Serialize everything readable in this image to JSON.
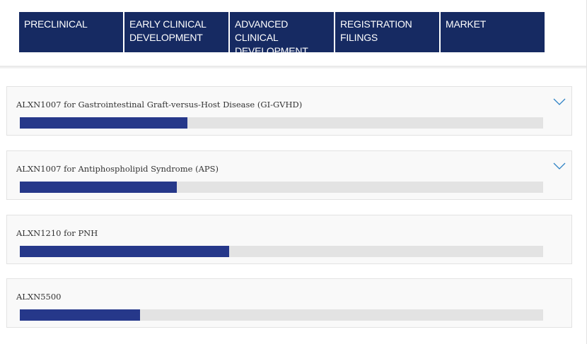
{
  "stages": [
    {
      "label": "PRECLINICAL"
    },
    {
      "label": "EARLY CLINICAL\nDEVELOPMENT"
    },
    {
      "label": "ADVANCED CLINICAL\nDEVELOPMENT"
    },
    {
      "label": "REGISTRATION\nFILINGS"
    },
    {
      "label": "MARKET"
    }
  ],
  "programs": [
    {
      "title": "ALXN1007 for Gastrointestinal Graft-versus-Host Disease (GI-GVHD)",
      "progress": 0.32,
      "expandable": true
    },
    {
      "title": "ALXN1007 for Antiphospholipid Syndrome (APS)",
      "progress": 0.3,
      "expandable": true
    },
    {
      "title": "ALXN1210 for PNH",
      "progress": 0.4,
      "expandable": false
    },
    {
      "title": "ALXN5500",
      "progress": 0.23,
      "expandable": false
    }
  ],
  "colors": {
    "stage_bg": "#162a62",
    "bar_fill": "#26388a",
    "bar_track": "#e3e3e3",
    "chevron": "#2f83c5"
  },
  "icons": {
    "expand": "chevron-down-icon"
  }
}
